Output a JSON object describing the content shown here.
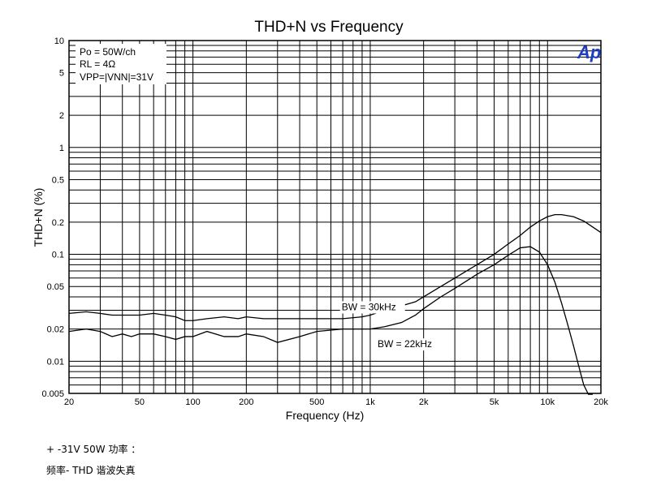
{
  "chart_data": {
    "type": "line",
    "title": "THD+N vs Frequency",
    "xlabel": "Frequency (Hz)",
    "ylabel": "THD+N (%)",
    "x_scale": "log",
    "y_scale": "log",
    "xlim": [
      20,
      20000
    ],
    "ylim": [
      0.005,
      10
    ],
    "grid": true,
    "x_tick_labels": [
      {
        "value": 20,
        "label": "20"
      },
      {
        "value": 50,
        "label": "50"
      },
      {
        "value": 100,
        "label": "100"
      },
      {
        "value": 200,
        "label": "200"
      },
      {
        "value": 500,
        "label": "500"
      },
      {
        "value": 1000,
        "label": "1k"
      },
      {
        "value": 2000,
        "label": "2k"
      },
      {
        "value": 5000,
        "label": "5k"
      },
      {
        "value": 10000,
        "label": "10k"
      },
      {
        "value": 20000,
        "label": "20k"
      }
    ],
    "y_tick_labels": [
      {
        "value": 10,
        "label": "10"
      },
      {
        "value": 5,
        "label": "5"
      },
      {
        "value": 2,
        "label": "2"
      },
      {
        "value": 1,
        "label": "1"
      },
      {
        "value": 0.5,
        "label": "0.5"
      },
      {
        "value": 0.2,
        "label": "0.2"
      },
      {
        "value": 0.1,
        "label": "0.1"
      },
      {
        "value": 0.05,
        "label": "0.05"
      },
      {
        "value": 0.02,
        "label": "0.02"
      },
      {
        "value": 0.01,
        "label": "0.01"
      },
      {
        "value": 0.005,
        "label": "0.005"
      }
    ],
    "conditions": [
      "Po = 50W/ch",
      "RL = 4Ω",
      "VPP=|VNN|=31V"
    ],
    "logo_text": "Ap",
    "series": [
      {
        "name": "BW = 30kHz",
        "color": "#000000",
        "x": [
          20,
          25,
          30,
          35,
          40,
          45,
          50,
          60,
          70,
          80,
          90,
          100,
          120,
          150,
          180,
          200,
          250,
          300,
          400,
          500,
          700,
          900,
          1000,
          1200,
          1500,
          1800,
          2000,
          2500,
          3000,
          4000,
          5000,
          6000,
          7000,
          8000,
          9000,
          10000,
          11000,
          12000,
          14000,
          16000,
          18000,
          20000
        ],
        "y": [
          0.028,
          0.029,
          0.028,
          0.027,
          0.027,
          0.027,
          0.027,
          0.028,
          0.027,
          0.026,
          0.024,
          0.024,
          0.025,
          0.026,
          0.025,
          0.026,
          0.025,
          0.025,
          0.025,
          0.025,
          0.025,
          0.026,
          0.027,
          0.03,
          0.033,
          0.036,
          0.04,
          0.05,
          0.06,
          0.08,
          0.1,
          0.125,
          0.15,
          0.18,
          0.205,
          0.225,
          0.235,
          0.235,
          0.225,
          0.205,
          0.18,
          0.16
        ]
      },
      {
        "name": "BW = 22kHz",
        "color": "#000000",
        "x": [
          20,
          25,
          30,
          35,
          40,
          45,
          50,
          60,
          70,
          80,
          90,
          100,
          120,
          150,
          180,
          200,
          250,
          300,
          400,
          500,
          700,
          900,
          1000,
          1200,
          1500,
          1800,
          2000,
          2500,
          3000,
          4000,
          5000,
          6000,
          7000,
          8000,
          9000,
          10000,
          11000,
          12000,
          13000,
          14000,
          15000,
          16000,
          17000,
          18000
        ],
        "y": [
          0.019,
          0.02,
          0.019,
          0.017,
          0.018,
          0.017,
          0.018,
          0.018,
          0.017,
          0.016,
          0.017,
          0.017,
          0.019,
          0.017,
          0.017,
          0.018,
          0.017,
          0.015,
          0.017,
          0.019,
          0.02,
          0.02,
          0.02,
          0.021,
          0.023,
          0.027,
          0.031,
          0.04,
          0.048,
          0.065,
          0.08,
          0.098,
          0.115,
          0.118,
          0.105,
          0.08,
          0.055,
          0.035,
          0.022,
          0.014,
          0.009,
          0.006,
          0.0045,
          0.0035
        ]
      }
    ],
    "annotations": [
      {
        "text": "BW = 30kHz",
        "x": 690,
        "y": 0.03
      },
      {
        "text": "BW = 22kHz",
        "x": 1100,
        "y": 0.0135
      }
    ]
  },
  "captions": {
    "line1": "+ -31V 50W 功率 ：",
    "line2": "频率-  THD 谐波失真"
  }
}
